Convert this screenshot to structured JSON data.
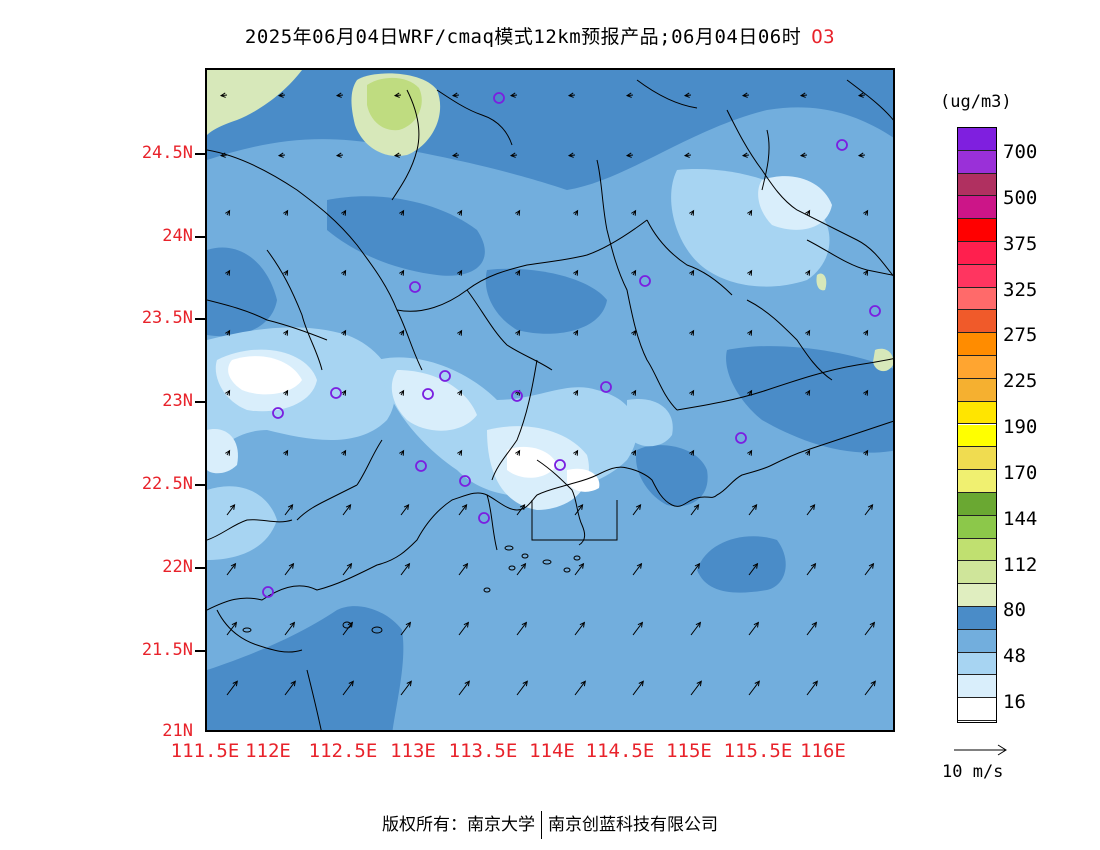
{
  "title": {
    "main": "2025年06月04日WRF/cmaq模式12km预报产品;06月04日06时",
    "species": "O3"
  },
  "map": {
    "y_ticks": [
      "24.5N",
      "24N",
      "23.5N",
      "23N",
      "22.5N",
      "22N",
      "21.5N",
      "21N"
    ],
    "x_ticks": [
      "111.5E",
      "112E",
      "112.5E",
      "113E",
      "113.5E",
      "114E",
      "114.5E",
      "115E",
      "115.5E",
      "116E"
    ],
    "colors": {
      "c1": "#4a8cc8",
      "c2": "#72aedd",
      "c3": "#a7d4f2",
      "c4": "#d9eefb",
      "c5": "#ffffff",
      "c6": "#d7e8ba",
      "c7": "#bfdc80",
      "border": "#000000",
      "station": "#7a1fe0"
    }
  },
  "colorbar": {
    "unit": "(ug/m3)",
    "segments": [
      {
        "color": "#7f1fdf"
      },
      {
        "color": "#9a30d8"
      },
      {
        "color": "#b03060"
      },
      {
        "color": "#cc1588"
      },
      {
        "color": "#ff0000"
      },
      {
        "color": "#ff1f4e"
      },
      {
        "color": "#ff3560"
      },
      {
        "color": "#ff6a6a"
      },
      {
        "color": "#f05a2a"
      },
      {
        "color": "#ff8c00"
      },
      {
        "color": "#ffa530"
      },
      {
        "color": "#f5b030"
      },
      {
        "color": "#ffe500"
      },
      {
        "color": "#ffff00"
      },
      {
        "color": "#f0dc50"
      },
      {
        "color": "#f0f070"
      },
      {
        "color": "#6aa832"
      },
      {
        "color": "#8cc84a"
      },
      {
        "color": "#c0e070"
      },
      {
        "color": "#cfe59a"
      },
      {
        "color": "#e0eec0"
      },
      {
        "color": "#4a8cc8"
      },
      {
        "color": "#72aedd"
      },
      {
        "color": "#a7d4f2"
      },
      {
        "color": "#d9eefb"
      },
      {
        "color": "#ffffff"
      }
    ],
    "labels": [
      "700",
      "500",
      "375",
      "325",
      "275",
      "225",
      "190",
      "170",
      "144",
      "112",
      "80",
      "48",
      "16"
    ]
  },
  "wind_reference": {
    "label": "10 m/s"
  },
  "footer": {
    "left": "版权所有：南京大学",
    "right": "南京创蓝科技有限公司"
  }
}
